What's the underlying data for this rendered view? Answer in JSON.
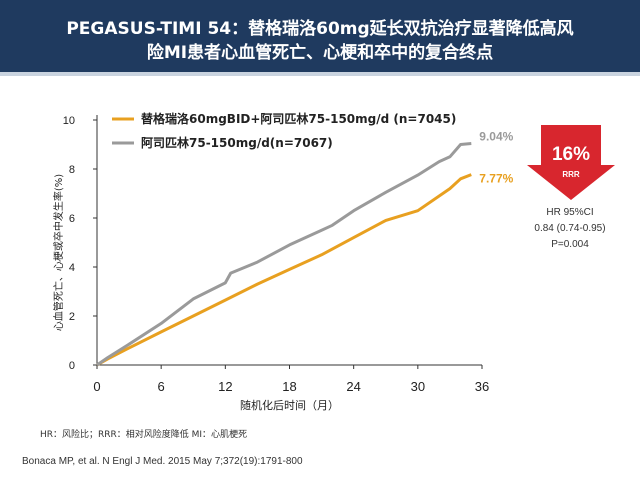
{
  "header": {
    "title_line1": "PEGASUS-TIMI 54：替格瑞洛60mg延长双抗治疗显著降低高风",
    "title_line2": "险MI患者心血管死亡、心梗和卒中的复合终点"
  },
  "chart_data": {
    "type": "line",
    "xlabel": "随机化后时间（月）",
    "ylabel": "心血管死亡、心梗或卒中发生率(%)",
    "xlim": [
      0,
      36
    ],
    "ylim": [
      0,
      10
    ],
    "xticks": [
      0,
      6,
      12,
      18,
      24,
      30,
      36
    ],
    "yticks": [
      0,
      2,
      4,
      6,
      8,
      10
    ],
    "grid": false,
    "legend_position": "top-left",
    "series": [
      {
        "name": "替格瑞洛60mgBID+阿司匹林75-150mg/d  (n=7045)",
        "color": "#e8a020",
        "end_label": "7.77%",
        "x": [
          0,
          1,
          3,
          6,
          9,
          12,
          15,
          18,
          21,
          24,
          27,
          30,
          33,
          34,
          35
        ],
        "y": [
          0,
          0.25,
          0.7,
          1.35,
          2.0,
          2.65,
          3.3,
          3.9,
          4.5,
          5.2,
          5.9,
          6.3,
          7.2,
          7.6,
          7.77
        ]
      },
      {
        "name": "阿司匹林75-150mg/d(n=7067)",
        "color": "#9a9a9a",
        "end_label": "9.04%",
        "x": [
          0,
          1,
          3,
          6,
          9,
          12,
          12.5,
          15,
          18,
          21,
          22,
          24,
          27,
          30,
          32,
          33,
          34,
          35
        ],
        "y": [
          0,
          0.3,
          0.85,
          1.7,
          2.7,
          3.35,
          3.75,
          4.2,
          4.9,
          5.5,
          5.7,
          6.3,
          7.05,
          7.75,
          8.3,
          8.5,
          9.0,
          9.04
        ]
      }
    ],
    "rrr": {
      "value": "16%",
      "label": "RRR",
      "color": "#d8262e"
    },
    "stats": [
      "HR 95%CI",
      "0.84 (0.74-0.95)",
      "P=0.004"
    ]
  },
  "footnote": "HR：风险比；RRR：相对风险度降低  MI：心肌梗死",
  "citation": "Bonaca MP, et al. N Engl J Med. 2015 May 7;372(19):1791-800"
}
